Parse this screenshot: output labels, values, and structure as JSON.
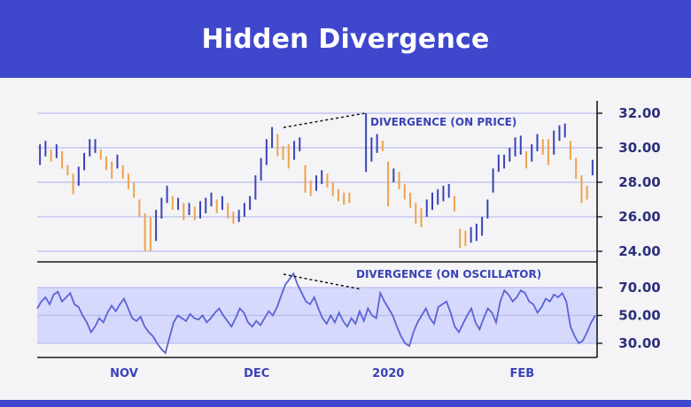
{
  "header": {
    "title": "Hidden Divergence"
  },
  "colors": {
    "header_bg": "#3f48cc",
    "up_candle": "#3a42b8",
    "down_candle": "#f0a24a",
    "grid": "#b9bdf0",
    "osc_band": "#d6d9fb",
    "osc_line": "#5a63d6",
    "axis_text": "#2b2f7a"
  },
  "chart_data": [
    {
      "type": "candlestick",
      "title": "Hidden Divergence",
      "yticks": [
        "32.00",
        "30.00",
        "28.00",
        "26.00",
        "24.00"
      ],
      "ylim": [
        24,
        32
      ],
      "grid": true,
      "x_labels": [
        "NOV",
        "DEC",
        "2020",
        "FEB"
      ],
      "x_label_positions": [
        0.155,
        0.392,
        0.627,
        0.866
      ],
      "close": [
        29.6,
        30.1,
        29.5,
        29.9,
        29.2,
        28.6,
        27.8,
        28.3,
        29.0,
        29.8,
        30.2,
        29.6,
        29.0,
        28.5,
        29.2,
        28.7,
        28.0,
        27.6,
        26.6,
        25.5,
        24.3,
        25.1,
        26.5,
        27.4,
        26.6,
        26.8,
        26.0,
        26.3,
        25.9,
        26.3,
        26.7,
        27.0,
        26.5,
        26.8,
        26.2,
        25.8,
        25.9,
        26.3,
        26.8,
        27.6,
        28.8,
        29.4,
        30.6,
        30.0,
        29.6,
        29.2,
        29.8,
        30.3,
        28.4,
        27.5,
        27.9,
        28.3,
        28.0,
        27.6,
        27.2,
        27.0,
        26.9,
        null,
        null,
        29.4,
        29.8,
        30.3,
        30.0,
        27.1,
        28.6,
        28.2,
        27.6,
        27.0,
        26.2,
        25.8,
        26.4,
        26.9,
        27.0,
        27.3,
        27.6,
        26.8,
        24.9,
        24.6,
        24.9,
        25.0,
        25.1,
        26.4,
        27.8,
        29.0,
        29.3,
        29.6,
        29.8,
        30.1,
        29.2,
        29.6,
        30.2,
        30.0,
        29.4,
        30.2,
        30.8,
        31.0,
        30.2,
        28.6,
        27.8,
        27.2,
        28.8
      ],
      "high": [
        30.2,
        30.4,
        29.9,
        30.2,
        29.8,
        29.0,
        28.5,
        28.9,
        29.7,
        30.5,
        30.5,
        29.9,
        29.5,
        29.2,
        29.6,
        29.0,
        28.5,
        28.0,
        27.0,
        26.2,
        26.0,
        26.4,
        27.1,
        27.8,
        27.2,
        27.1,
        26.8,
        26.8,
        26.6,
        26.9,
        27.1,
        27.4,
        27.0,
        27.2,
        26.8,
        26.3,
        26.4,
        26.8,
        27.2,
        28.4,
        29.4,
        30.5,
        31.2,
        30.8,
        30.1,
        30.2,
        30.4,
        30.6,
        29.0,
        28.1,
        28.4,
        28.7,
        28.5,
        28.0,
        27.6,
        27.4,
        27.4,
        null,
        null,
        32.0,
        30.6,
        30.8,
        30.4,
        29.2,
        28.8,
        28.6,
        27.9,
        27.4,
        26.8,
        26.5,
        27.0,
        27.4,
        27.6,
        27.8,
        27.9,
        27.2,
        25.3,
        25.2,
        25.4,
        25.6,
        26.0,
        27.0,
        28.8,
        29.6,
        29.6,
        30.0,
        30.6,
        30.7,
        29.8,
        30.2,
        30.8,
        30.5,
        30.5,
        31.0,
        31.3,
        31.4,
        30.4,
        29.4,
        28.4,
        27.8,
        29.3
      ],
      "low": [
        29.0,
        29.5,
        29.2,
        29.4,
        28.8,
        28.4,
        27.3,
        27.8,
        28.7,
        29.5,
        29.7,
        29.3,
        28.7,
        28.2,
        28.8,
        28.2,
        27.6,
        27.1,
        26.0,
        24.0,
        24.0,
        24.6,
        25.9,
        26.8,
        26.4,
        26.4,
        25.8,
        26.1,
        25.8,
        25.9,
        26.2,
        26.6,
        26.2,
        26.4,
        25.9,
        25.6,
        25.7,
        26.0,
        26.4,
        27.0,
        28.1,
        29.0,
        30.0,
        29.5,
        29.3,
        28.8,
        29.3,
        29.8,
        27.4,
        27.2,
        27.5,
        27.9,
        27.7,
        27.2,
        26.9,
        26.7,
        26.8,
        null,
        null,
        28.6,
        29.2,
        29.7,
        29.8,
        26.6,
        28.0,
        27.6,
        27.0,
        26.5,
        25.6,
        25.4,
        26.0,
        26.4,
        26.7,
        26.9,
        27.1,
        26.3,
        24.2,
        24.3,
        24.5,
        24.6,
        24.9,
        25.9,
        27.4,
        28.6,
        28.8,
        29.2,
        29.5,
        29.6,
        28.8,
        29.2,
        29.8,
        29.6,
        29.0,
        29.6,
        30.4,
        30.6,
        29.3,
        28.2,
        26.8,
        27.0,
        28.4
      ]
    },
    {
      "type": "line",
      "yticks": [
        "70.00",
        "50.00",
        "30.00"
      ],
      "ylim": [
        22,
        82
      ],
      "grid": true,
      "values": [
        55,
        60,
        63,
        58,
        65,
        67,
        60,
        63,
        66,
        58,
        56,
        50,
        45,
        38,
        42,
        48,
        45,
        52,
        57,
        53,
        58,
        62,
        55,
        48,
        46,
        49,
        42,
        38,
        35,
        30,
        26,
        23,
        34,
        45,
        50,
        48,
        46,
        51,
        48,
        47,
        50,
        45,
        48,
        52,
        55,
        50,
        46,
        42,
        48,
        55,
        52,
        45,
        42,
        46,
        43,
        48,
        53,
        50,
        56,
        64,
        72,
        76,
        80,
        72,
        66,
        60,
        58,
        63,
        55,
        48,
        44,
        50,
        45,
        52,
        46,
        42,
        48,
        44,
        53,
        46,
        55,
        50,
        48,
        66,
        60,
        55,
        50,
        42,
        35,
        30,
        28,
        38,
        45,
        50,
        55,
        48,
        44,
        56,
        58,
        60,
        52,
        42,
        38,
        44,
        50,
        55,
        45,
        40,
        48,
        55,
        52,
        45,
        60,
        68,
        65,
        60,
        63,
        68,
        66,
        60,
        58,
        52,
        56,
        62,
        60,
        65,
        63,
        66,
        60,
        42,
        35,
        30,
        32,
        38,
        45,
        50
      ],
      "annotations": [
        "DIVERGENCE (ON PRICE)",
        "DIVERGENCE (ON OSCILLATOR)"
      ]
    }
  ]
}
